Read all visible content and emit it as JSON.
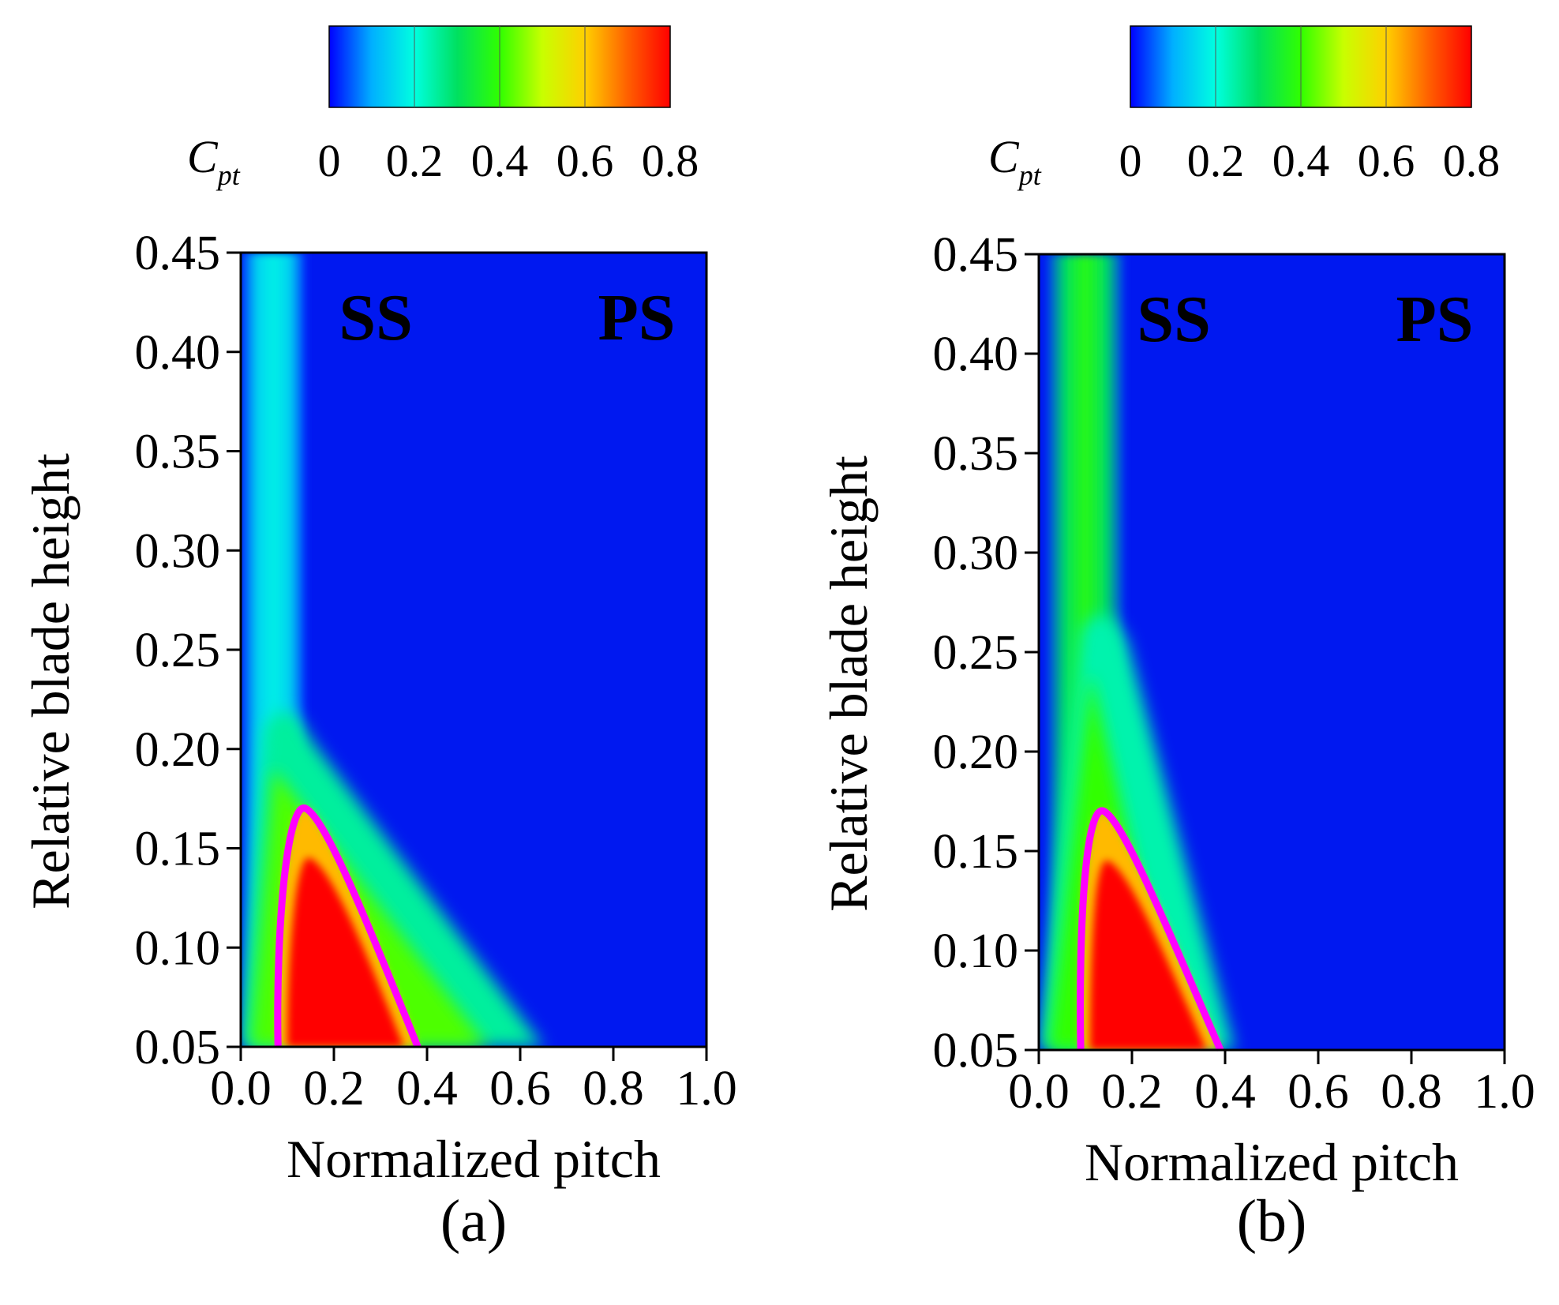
{
  "colors": {
    "colormap": [
      "#0000ff",
      "#00b0ff",
      "#00ffe0",
      "#00e060",
      "#30ff00",
      "#c8ff00",
      "#ffd000",
      "#ff6000",
      "#ff0000"
    ],
    "loss_core_contour": "#ff00ff",
    "background": "#0018f0"
  },
  "chart_data": [
    {
      "type": "heatmap",
      "panel_label": "(a)",
      "title": "",
      "xlabel": "Normalized pitch",
      "ylabel": "Relative blade height",
      "xlim": [
        0.0,
        1.0
      ],
      "ylim": [
        0.05,
        0.45
      ],
      "xticks": [
        "0.0",
        "0.2",
        "0.4",
        "0.6",
        "0.8",
        "1.0"
      ],
      "yticks": [
        "0.05",
        "0.10",
        "0.15",
        "0.20",
        "0.25",
        "0.30",
        "0.35",
        "0.40",
        "0.45"
      ],
      "colorbar": {
        "label": "C",
        "label_subscript": "pt",
        "ticks": [
          "0",
          "0.2",
          "0.4",
          "0.6",
          "0.8"
        ],
        "range": [
          0,
          0.8
        ]
      },
      "region_labels": [
        "SS",
        "PS"
      ],
      "contour_peak": {
        "x": 0.14,
        "y": 0.17
      },
      "contour_base": {
        "x0": 0.08,
        "x1": 0.38,
        "y": 0.05
      },
      "field_features": {
        "wake_band": {
          "x_center": 0.07,
          "half_width": 0.07,
          "cpt": 0.18
        },
        "wedge": {
          "apex_x": 0.1,
          "apex_y": 0.22,
          "base_x1": 0.65,
          "cpt": 0.42
        },
        "core": {
          "cpt": 0.8
        }
      }
    },
    {
      "type": "heatmap",
      "panel_label": "(b)",
      "title": "",
      "xlabel": "Normalized pitch",
      "ylabel": "Relative blade height",
      "xlim": [
        0.0,
        1.0
      ],
      "ylim": [
        0.05,
        0.45
      ],
      "xticks": [
        "0.0",
        "0.2",
        "0.4",
        "0.6",
        "0.8",
        "1.0"
      ],
      "yticks": [
        "0.05",
        "0.10",
        "0.15",
        "0.20",
        "0.25",
        "0.30",
        "0.35",
        "0.40",
        "0.45"
      ],
      "colorbar": {
        "label": "C",
        "label_subscript": "pt",
        "ticks": [
          "0",
          "0.2",
          "0.4",
          "0.6",
          "0.8"
        ],
        "range": [
          0,
          0.8
        ]
      },
      "region_labels": [
        "SS",
        "PS"
      ],
      "contour_peak": {
        "x": 0.14,
        "y": 0.17
      },
      "contour_base": {
        "x0": 0.09,
        "x1": 0.39,
        "y": 0.05
      },
      "field_features": {
        "wake_band": {
          "x_center": 0.1,
          "half_width": 0.085,
          "cpt": 0.38
        },
        "wedge": {
          "apex_x": 0.14,
          "apex_y": 0.27,
          "base_x1": 0.42,
          "cpt": 0.4
        },
        "core": {
          "cpt": 0.8
        }
      }
    }
  ]
}
